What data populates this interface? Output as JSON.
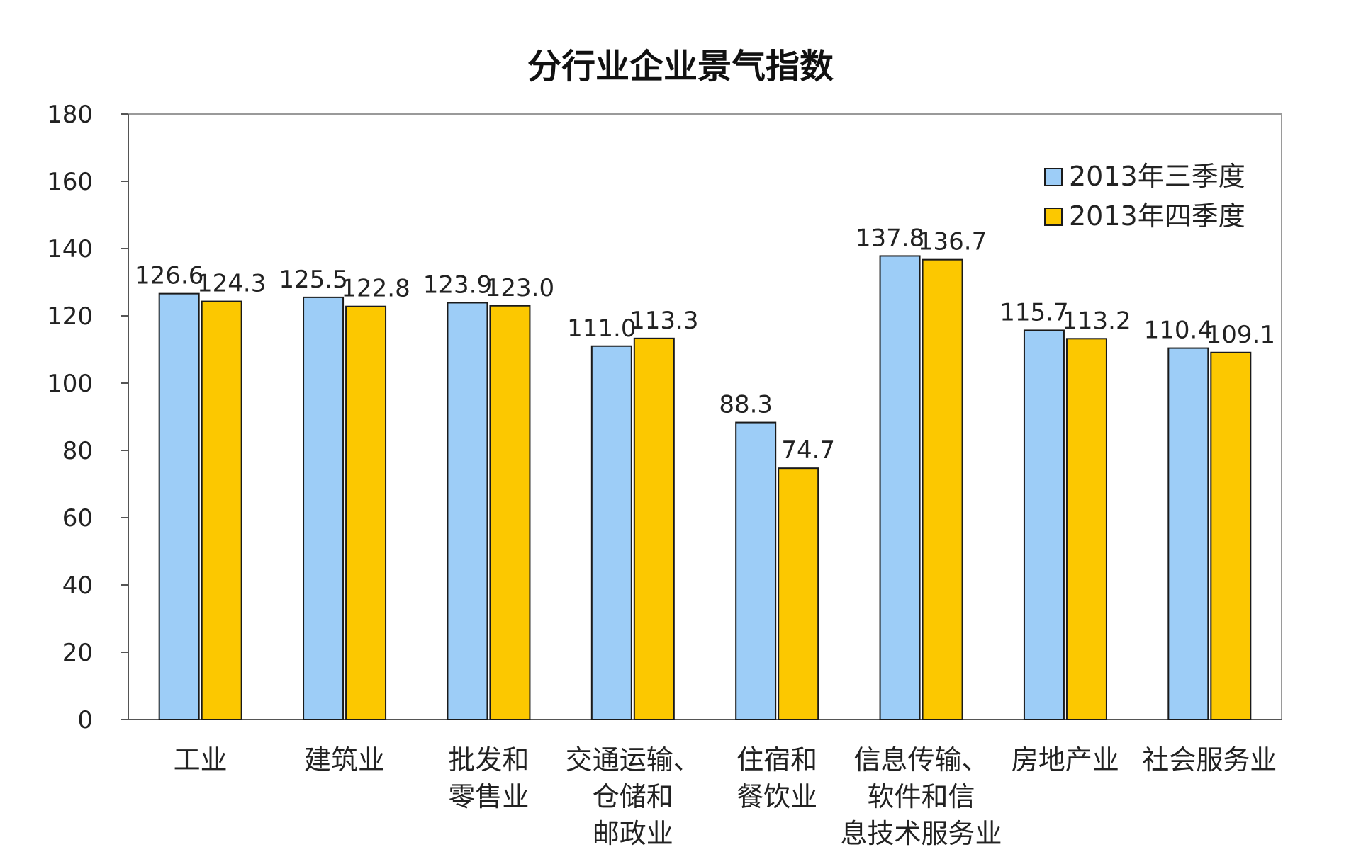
{
  "colors": {
    "series1": "#9dcdf7",
    "series2": "#fcc800",
    "bar_stroke": "#1a1a1a",
    "axis": "#555555",
    "plot_border": "#9a9a9a"
  },
  "chart_data": {
    "type": "bar",
    "title": "分行业企业景气指数",
    "xlabel": "",
    "ylabel": "",
    "ylim": [
      0,
      180
    ],
    "yticks": [
      0,
      20,
      40,
      60,
      80,
      100,
      120,
      140,
      160,
      180
    ],
    "grid": false,
    "legend_position": "top-right",
    "categories": [
      "工业",
      "建筑业",
      "批发和零售业",
      "交通运输、仓储和邮政业",
      "住宿和餐饮业",
      "信息传输、软件和信息技术服务业",
      "房地产业",
      "社会服务业"
    ],
    "category_lines": [
      [
        "工业"
      ],
      [
        "建筑业"
      ],
      [
        "批发和",
        "零售业"
      ],
      [
        "交通运输、",
        "仓储和",
        "邮政业"
      ],
      [
        "住宿和",
        "餐饮业"
      ],
      [
        "信息传输、",
        "软件和信",
        "息技术服务业"
      ],
      [
        "房地产业"
      ],
      [
        "社会服务业"
      ]
    ],
    "series": [
      {
        "name": "2013年三季度",
        "values": [
          126.6,
          125.5,
          123.9,
          111.0,
          88.3,
          137.8,
          115.7,
          110.4
        ],
        "labels": [
          "126.6",
          "125.5",
          "123.9",
          "111.0",
          "88.3",
          "137.8",
          "115.7",
          "110.4"
        ]
      },
      {
        "name": "2013年四季度",
        "values": [
          124.3,
          122.8,
          123.0,
          113.3,
          74.7,
          136.7,
          113.2,
          109.1
        ],
        "labels": [
          "124.3",
          "122.8",
          "123.0",
          "113.3",
          "74.7",
          "136.7",
          "113.2",
          "109.1"
        ]
      }
    ]
  }
}
